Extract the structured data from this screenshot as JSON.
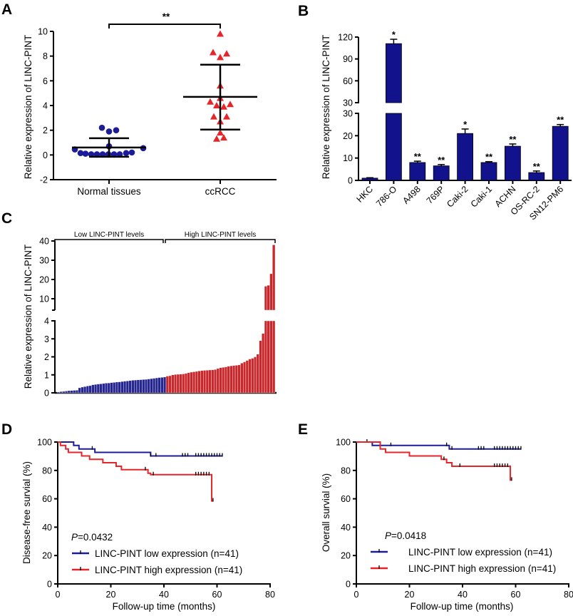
{
  "chart_data": [
    {
      "panel": "A",
      "type": "scatter",
      "ylabel": "Relative expression of LINC-PINT",
      "categories": [
        "Normal tissues",
        "ccRCC"
      ],
      "ylim": [
        -2,
        10
      ],
      "yticks": [
        -2,
        0,
        2,
        4,
        6,
        8,
        10
      ],
      "significance": "**",
      "series": [
        {
          "name": "Normal tissues",
          "color": "#1c1c9a",
          "marker": "circle",
          "values": [
            2.2,
            1.9,
            2.0,
            0.7,
            0.45,
            0.15,
            0.1,
            0.05,
            0.05,
            0.05,
            0.05,
            0.05,
            0.05,
            0.15,
            0.2,
            0.55
          ],
          "mean": 0.6,
          "sd_upper": 1.35,
          "sd_lower": -0.15
        },
        {
          "name": "ccRCC",
          "color": "#e4262a",
          "marker": "triangle",
          "values": [
            9.8,
            8.3,
            7.9,
            8.2,
            5.6,
            4.6,
            4.3,
            4.0,
            3.9,
            4.1,
            3.1,
            3.1,
            2.7,
            1.8,
            1.3,
            1.4
          ],
          "mean": 4.7,
          "sd_upper": 7.3,
          "sd_lower": 2.05
        }
      ]
    },
    {
      "panel": "B",
      "type": "bar",
      "ylabel": "Relative expression of LINC-PINT",
      "broken_axis": true,
      "ylim_lower": [
        0,
        30
      ],
      "yticks_lower": [
        0,
        10,
        20,
        30
      ],
      "ylim_upper": [
        30,
        120
      ],
      "yticks_upper": [
        30,
        60,
        90,
        120
      ],
      "categories": [
        "HKC",
        "786-O",
        "A498",
        "769P",
        "Caki-2",
        "Caki-1",
        "ACHN",
        "OS-RC-2",
        "SN12-PM6"
      ],
      "values": [
        1,
        111,
        8,
        6.5,
        21,
        8,
        15.3,
        3.5,
        24.2
      ],
      "errors": [
        0.2,
        6,
        0.6,
        0.6,
        2,
        0.4,
        1,
        0.7,
        0.8
      ],
      "significance": [
        "",
        "*",
        "**",
        "**",
        "*",
        "**",
        "**",
        "**",
        "**"
      ],
      "color": "#12128c"
    },
    {
      "panel": "C",
      "type": "bar",
      "ylabel": "Relative expression of LINC-PINT",
      "broken_axis": true,
      "ylim_lower": [
        0,
        4
      ],
      "yticks_lower": [
        0,
        1,
        2,
        3,
        4
      ],
      "ylim_upper": [
        4,
        40
      ],
      "yticks_upper": [
        10,
        20,
        30,
        40
      ],
      "groups": [
        {
          "label": "Low LINC-PINT levels",
          "color": "#25258f",
          "values": [
            0.05,
            0.07,
            0.08,
            0.1,
            0.12,
            0.13,
            0.14,
            0.15,
            0.28,
            0.32,
            0.35,
            0.38,
            0.4,
            0.45,
            0.47,
            0.49,
            0.5,
            0.52,
            0.54,
            0.55,
            0.57,
            0.58,
            0.6,
            0.61,
            0.63,
            0.65,
            0.66,
            0.68,
            0.7,
            0.71,
            0.72,
            0.73,
            0.74,
            0.75,
            0.77,
            0.79,
            0.81,
            0.83,
            0.85,
            0.86,
            0.88
          ]
        },
        {
          "label": "High LINC-PINT levels",
          "color": "#c8282b",
          "values": [
            0.93,
            0.95,
            1.0,
            1.02,
            1.03,
            1.04,
            1.05,
            1.08,
            1.12,
            1.15,
            1.17,
            1.19,
            1.22,
            1.24,
            1.25,
            1.26,
            1.27,
            1.28,
            1.3,
            1.35,
            1.4,
            1.42,
            1.44,
            1.48,
            1.5,
            1.52,
            1.53,
            1.55,
            1.65,
            1.72,
            1.8,
            1.88,
            1.92,
            2.0,
            2.15,
            2.9,
            3.3,
            16.5,
            17,
            23,
            38
          ]
        }
      ]
    },
    {
      "panel": "D",
      "type": "line",
      "ylabel": "Disease-free survial (%)",
      "xlabel": "Follow-up time (months)",
      "xlim": [
        0,
        80
      ],
      "xticks": [
        0,
        20,
        40,
        60,
        80
      ],
      "ylim": [
        0,
        100
      ],
      "yticks": [
        0,
        20,
        40,
        60,
        80,
        100
      ],
      "p_value": "=0.0432",
      "p_symbol": "P",
      "series": [
        {
          "name": "LINC-PINT low expression (n=41)",
          "color": "#1c1c9a",
          "end": 62,
          "steps": [
            [
              6,
              97.6
            ],
            [
              8,
              95.1
            ],
            [
              14,
              92.7
            ],
            [
              35,
              90.2
            ]
          ],
          "censored": [
            13,
            35,
            37,
            47,
            48,
            49,
            52,
            53,
            54,
            55,
            56,
            57,
            58,
            59,
            60,
            61,
            62
          ]
        },
        {
          "name": "LINC-PINT high expression (n=41)",
          "color": "#e4262a",
          "end": 58.5,
          "steps": [
            [
              1,
              97.6
            ],
            [
              3,
              95.1
            ],
            [
              4,
              92.7
            ],
            [
              9,
              90.2
            ],
            [
              12,
              87.8
            ],
            [
              17,
              85.4
            ],
            [
              22,
              82.9
            ],
            [
              24,
              80.5
            ],
            [
              34,
              78.0
            ],
            [
              35,
              77.0
            ],
            [
              58,
              58.5
            ]
          ],
          "censored": [
            33,
            36,
            52,
            53,
            54,
            55,
            56,
            57,
            58.5
          ]
        }
      ],
      "legend": "bottom-left"
    },
    {
      "panel": "E",
      "type": "line",
      "ylabel": "Overall survial (%)",
      "xlabel": "Follow-up time (months)",
      "xlim": [
        0,
        80
      ],
      "xticks": [
        0,
        20,
        40,
        60,
        80
      ],
      "ylim": [
        0,
        100
      ],
      "yticks": [
        0,
        20,
        40,
        60,
        80,
        100
      ],
      "p_value": "=0.0418",
      "p_symbol": "P",
      "series": [
        {
          "name": "LINC-PINT low expression (n=41)",
          "color": "#1c1c9a",
          "end": 62,
          "steps": [
            [
              6,
              97.6
            ],
            [
              35,
              95.1
            ]
          ],
          "censored": [
            4,
            13,
            34,
            36,
            46,
            47,
            48,
            52,
            53,
            54,
            55,
            56,
            57,
            58,
            59,
            60,
            61,
            62
          ]
        },
        {
          "name": "LINC-PINT high expression (n=41)",
          "color": "#e4262a",
          "end": 58.5,
          "steps": [
            [
              9,
              95.1
            ],
            [
              11,
              92.7
            ],
            [
              20,
              90.2
            ],
            [
              32,
              87.8
            ],
            [
              34,
              85.4
            ],
            [
              36,
              82.9
            ],
            [
              58,
              73.2
            ]
          ],
          "censored": [
            33,
            39,
            52,
            53,
            54,
            55,
            56,
            57,
            58.5
          ]
        }
      ],
      "legend": "bottom-left"
    }
  ]
}
